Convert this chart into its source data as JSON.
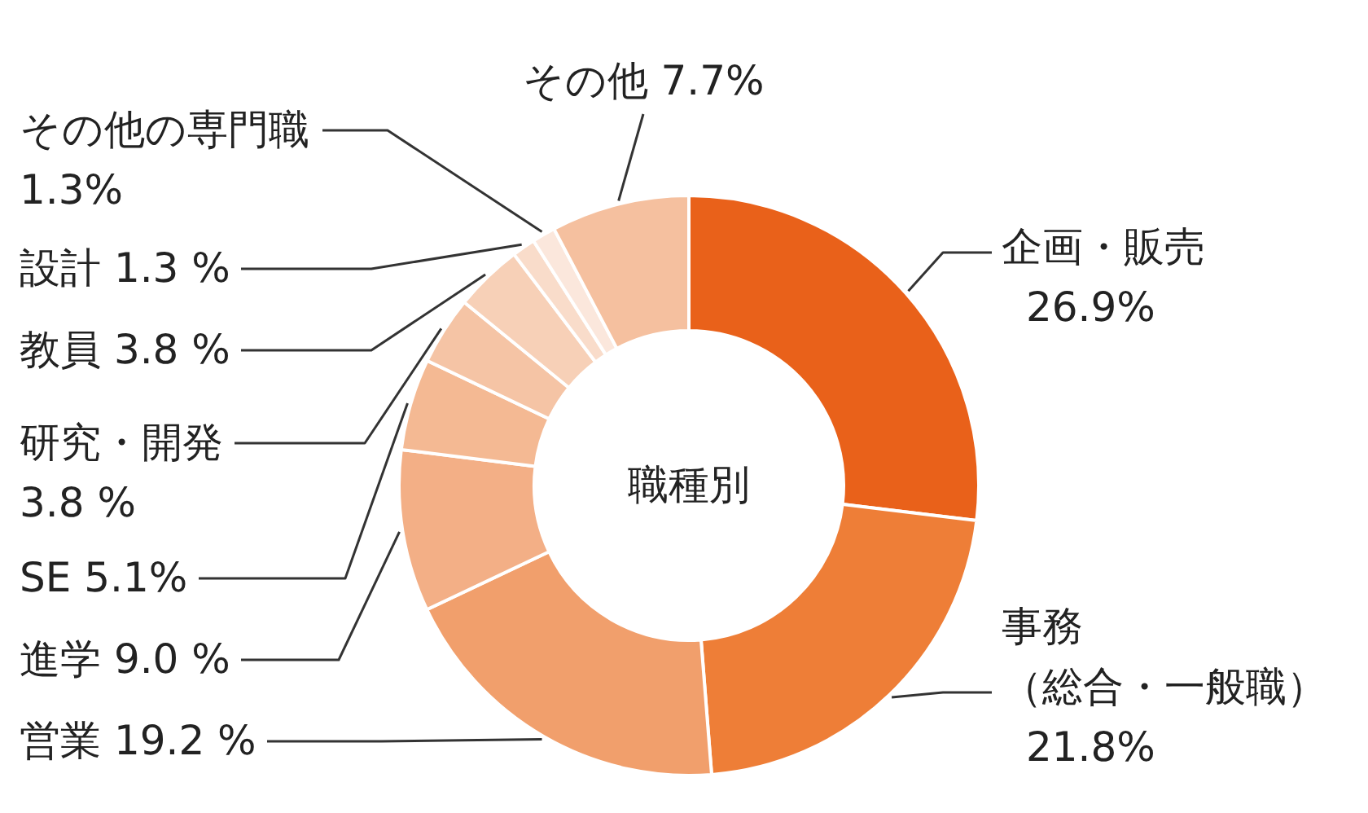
{
  "chart_data": {
    "type": "donut",
    "title": "職種別",
    "categories": [
      "企画・販売",
      "事務（総合・一般職）",
      "営業",
      "進学",
      "SE",
      "研究・開発",
      "教員",
      "設計",
      "その他の専門職",
      "その他"
    ],
    "values": [
      26.9,
      21.8,
      19.2,
      9.0,
      5.1,
      3.8,
      3.8,
      1.3,
      1.3,
      7.7
    ],
    "value_labels": [
      "26.9%",
      "21.8%",
      "19.2 %",
      "9.0 %",
      "5.1%",
      "3.8 %",
      "3.8 %",
      "1.3 %",
      "1.3%",
      "7.7%"
    ],
    "colors": [
      "#e9611a",
      "#ee7e37",
      "#f19f6c",
      "#f3af86",
      "#f4b993",
      "#f5c4a5",
      "#f7d0b7",
      "#f9dcca",
      "#fbe7dc",
      "#f5c09f"
    ]
  }
}
